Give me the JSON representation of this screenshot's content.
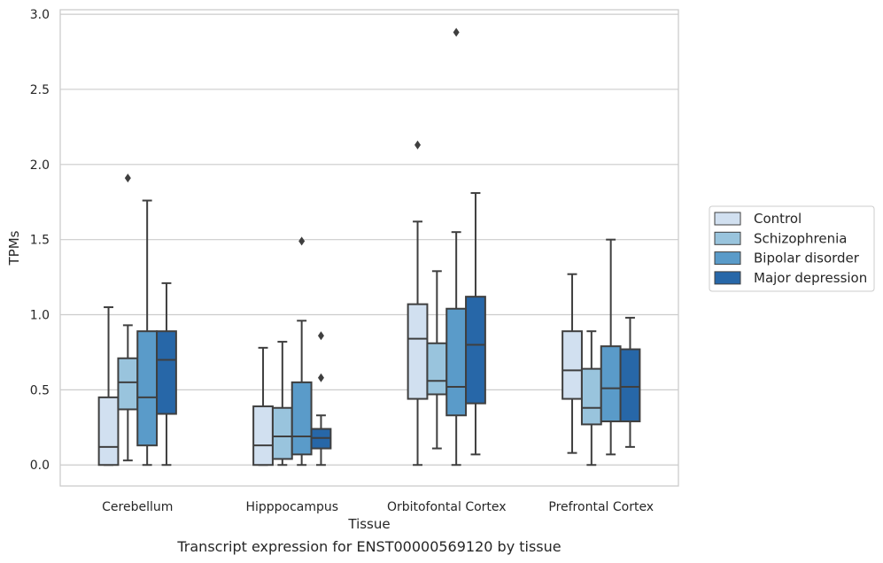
{
  "caption": "Transcript expression for ENST00000569120 by tissue",
  "chart_data": {
    "type": "boxplot",
    "xlabel": "Tissue",
    "ylabel": "TPMs",
    "ylim": [
      -0.14,
      3.03
    ],
    "yticks": [
      "0.0",
      "0.5",
      "1.0",
      "1.5",
      "2.0",
      "2.5",
      "3.0"
    ],
    "grid": "horizontal",
    "legend_position": "right",
    "categories": [
      "Cerebellum",
      "Hipppocampus",
      "Orbitofontal Cortex",
      "Prefrontal Cortex"
    ],
    "series": [
      {
        "name": "Control",
        "color": "#d1e0f0",
        "boxes": [
          {
            "whislo": 0.0,
            "q1": 0.0,
            "med": 0.12,
            "q3": 0.45,
            "whishi": 1.05,
            "fliers": []
          },
          {
            "whislo": 0.0,
            "q1": 0.0,
            "med": 0.13,
            "q3": 0.39,
            "whishi": 0.78,
            "fliers": []
          },
          {
            "whislo": 0.0,
            "q1": 0.44,
            "med": 0.84,
            "q3": 1.07,
            "whishi": 1.62,
            "fliers": [
              2.13
            ]
          },
          {
            "whislo": 0.08,
            "q1": 0.44,
            "med": 0.63,
            "q3": 0.89,
            "whishi": 1.27,
            "fliers": []
          }
        ]
      },
      {
        "name": "Schizophrenia",
        "color": "#99c4dd",
        "boxes": [
          {
            "whislo": 0.03,
            "q1": 0.37,
            "med": 0.55,
            "q3": 0.71,
            "whishi": 0.93,
            "fliers": [
              1.91
            ]
          },
          {
            "whislo": 0.0,
            "q1": 0.04,
            "med": 0.19,
            "q3": 0.38,
            "whishi": 0.82,
            "fliers": []
          },
          {
            "whislo": 0.11,
            "q1": 0.47,
            "med": 0.56,
            "q3": 0.81,
            "whishi": 1.29,
            "fliers": []
          },
          {
            "whislo": 0.0,
            "q1": 0.27,
            "med": 0.38,
            "q3": 0.64,
            "whishi": 0.89,
            "fliers": []
          }
        ]
      },
      {
        "name": "Bipolar disorder",
        "color": "#5a9bc9",
        "boxes": [
          {
            "whislo": 0.0,
            "q1": 0.13,
            "med": 0.45,
            "q3": 0.89,
            "whishi": 1.76,
            "fliers": []
          },
          {
            "whislo": 0.0,
            "q1": 0.07,
            "med": 0.19,
            "q3": 0.55,
            "whishi": 0.96,
            "fliers": [
              1.49
            ]
          },
          {
            "whislo": 0.0,
            "q1": 0.33,
            "med": 0.52,
            "q3": 1.04,
            "whishi": 1.55,
            "fliers": [
              2.88
            ]
          },
          {
            "whislo": 0.07,
            "q1": 0.29,
            "med": 0.51,
            "q3": 0.79,
            "whishi": 1.5,
            "fliers": []
          }
        ]
      },
      {
        "name": "Major depression",
        "color": "#2767a8",
        "boxes": [
          {
            "whislo": 0.0,
            "q1": 0.34,
            "med": 0.7,
            "q3": 0.89,
            "whishi": 1.21,
            "fliers": []
          },
          {
            "whislo": 0.0,
            "q1": 0.11,
            "med": 0.18,
            "q3": 0.24,
            "whishi": 0.33,
            "fliers": [
              0.86,
              0.58
            ]
          },
          {
            "whislo": 0.07,
            "q1": 0.41,
            "med": 0.8,
            "q3": 1.12,
            "whishi": 1.81,
            "fliers": []
          },
          {
            "whislo": 0.12,
            "q1": 0.29,
            "med": 0.52,
            "q3": 0.77,
            "whishi": 0.98,
            "fliers": []
          }
        ]
      }
    ]
  }
}
